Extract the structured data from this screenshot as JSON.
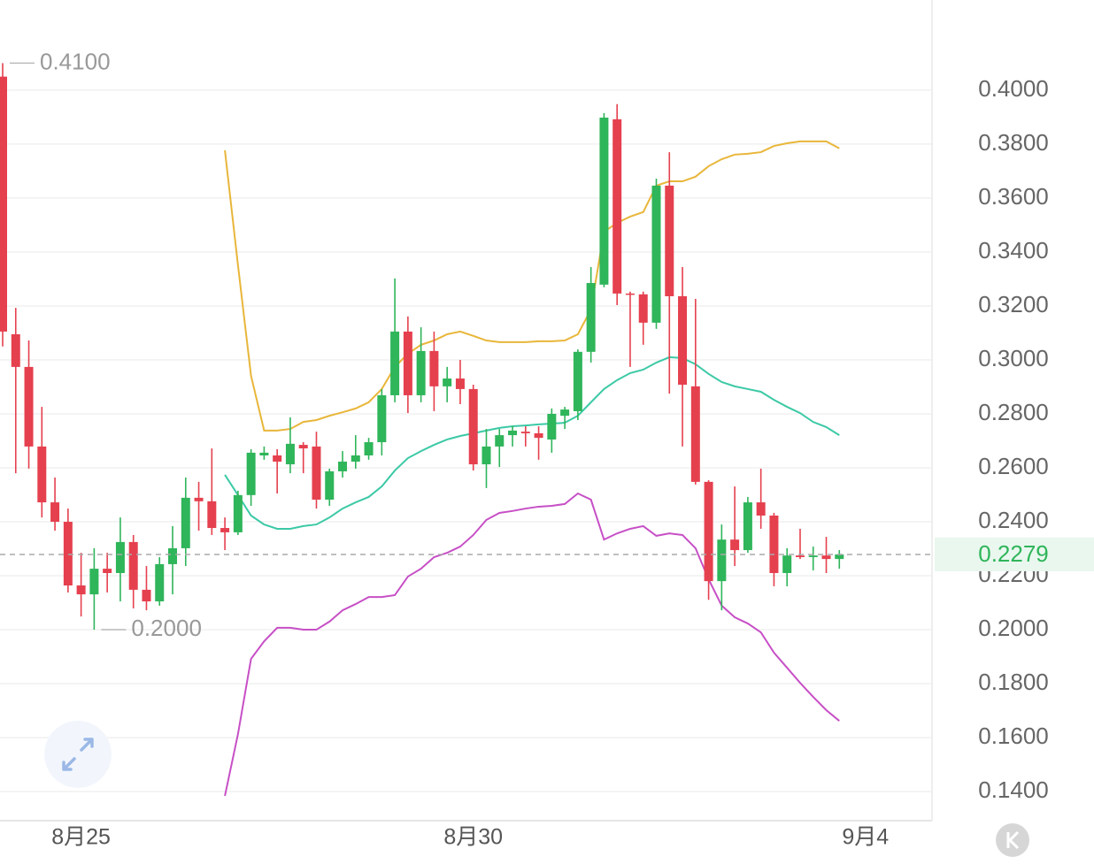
{
  "chart_data": {
    "type": "candlestick",
    "categories": [
      null,
      null,
      null,
      null,
      null,
      null,
      "8月25",
      null,
      null,
      null,
      null,
      null,
      null,
      null,
      null,
      null,
      null,
      null,
      null,
      null,
      null,
      null,
      null,
      null,
      null,
      null,
      null,
      null,
      null,
      null,
      null,
      null,
      null,
      null,
      null,
      null,
      "8月30",
      null,
      null,
      null,
      null,
      null,
      null,
      null,
      null,
      null,
      null,
      null,
      null,
      null,
      null,
      null,
      null,
      null,
      null,
      null,
      null,
      null,
      null,
      null,
      null,
      null,
      null,
      null,
      null,
      null,
      "9月4"
    ],
    "open": [
      0.405,
      0.3095,
      0.2974,
      0.2679,
      0.2472,
      0.24,
      0.2164,
      0.2131,
      0.2226,
      0.221,
      0.2325,
      0.2148,
      0.2105,
      0.2243,
      0.2302,
      0.2489,
      0.2476,
      0.2377,
      0.2361,
      0.2499,
      0.2646,
      0.2646,
      0.2613,
      0.2685,
      0.2679,
      0.2482,
      0.2587,
      0.2623,
      0.2646,
      0.2695,
      0.2869,
      0.3105,
      0.2869,
      0.3033,
      0.2902,
      0.2931,
      0.2892,
      0.2613,
      0.2679,
      0.2721,
      0.2734,
      0.2728,
      0.2705,
      0.2793,
      0.281,
      0.303,
      0.3279,
      0.3892,
      0.3246,
      0.3243,
      0.3138,
      0.3646,
      0.3236,
      0.2902,
      0.2548,
      0.218,
      0.2334,
      0.2295,
      0.2472,
      0.2423,
      0.221,
      0.2275,
      0.2269,
      0.2275,
      0.2262,
      null,
      null
    ],
    "high": [
      0.41,
      0.3193,
      0.3072,
      0.2826,
      0.2564,
      0.2449,
      0.2285,
      0.2302,
      0.2285,
      0.2416,
      0.2351,
      0.2236,
      0.2269,
      0.2384,
      0.2564,
      0.2548,
      0.2672,
      0.2416,
      0.2515,
      0.2669,
      0.2679,
      0.2669,
      0.2787,
      0.2695,
      0.2734,
      0.2597,
      0.2662,
      0.2721,
      0.2711,
      0.2892,
      0.3302,
      0.3161,
      0.3121,
      0.3105,
      0.2974,
      0.3,
      0.2908,
      0.2744,
      0.2744,
      0.2754,
      0.2754,
      0.2754,
      0.282,
      0.2826,
      0.3039,
      0.3344,
      0.3915,
      0.3948,
      0.3253,
      0.3253,
      0.3672,
      0.377,
      0.3344,
      0.3226,
      0.2554,
      0.239,
      0.2531,
      0.2492,
      0.2597,
      0.2433,
      0.2302,
      0.2374,
      0.2308,
      0.2344,
      0.2295,
      null,
      null
    ],
    "low": [
      0.305,
      0.258,
      0.2597,
      0.2416,
      0.2367,
      0.2138,
      0.2049,
      0.2,
      0.2138,
      0.2105,
      0.2079,
      0.2072,
      0.2089,
      0.2131,
      0.2236,
      0.2367,
      0.2351,
      0.2295,
      0.2351,
      0.2459,
      0.263,
      0.2505,
      0.258,
      0.258,
      0.2449,
      0.2459,
      0.2564,
      0.2597,
      0.263,
      0.2646,
      0.2843,
      0.2803,
      0.2843,
      0.281,
      0.2843,
      0.2836,
      0.259,
      0.2525,
      0.2603,
      0.2679,
      0.2679,
      0.263,
      0.2656,
      0.2744,
      0.2777,
      0.299,
      0.3269,
      0.3203,
      0.2974,
      0.3056,
      0.3115,
      0.2875,
      0.2679,
      0.2538,
      0.2111,
      0.2072,
      0.2236,
      0.2285,
      0.2374,
      0.2161,
      0.2161,
      0.2262,
      0.222,
      0.221,
      0.2226,
      null,
      null
    ],
    "close": [
      0.3105,
      0.2974,
      0.2679,
      0.2472,
      0.24,
      0.2164,
      0.2131,
      0.2226,
      0.221,
      0.2325,
      0.2148,
      0.2105,
      0.2243,
      0.2302,
      0.2489,
      0.2476,
      0.2377,
      0.2361,
      0.2499,
      0.2656,
      0.2656,
      0.2623,
      0.2689,
      0.2672,
      0.2482,
      0.2587,
      0.2623,
      0.2646,
      0.2695,
      0.2869,
      0.3105,
      0.2869,
      0.3033,
      0.2902,
      0.2931,
      0.2892,
      0.2613,
      0.2679,
      0.2721,
      0.2738,
      0.2728,
      0.2711,
      0.28,
      0.2816,
      0.303,
      0.3285,
      0.3898,
      0.3246,
      0.3243,
      0.3138,
      0.3646,
      0.3236,
      0.2908,
      0.2548,
      0.218,
      0.2334,
      0.2295,
      0.2472,
      0.2423,
      0.221,
      0.2275,
      0.2269,
      0.2275,
      0.2262,
      0.2279,
      null,
      null
    ],
    "up_color": "#2fb55a",
    "down_color": "#e5404e",
    "overlays": [
      {
        "color": "#e8b63a",
        "values": [
          null,
          null,
          null,
          null,
          null,
          null,
          null,
          null,
          null,
          null,
          null,
          null,
          null,
          null,
          null,
          null,
          null,
          0.3777,
          0.3351,
          0.2941,
          0.2738,
          0.2738,
          0.2744,
          0.277,
          0.2777,
          0.2793,
          0.2806,
          0.282,
          0.2843,
          0.2892,
          0.2974,
          0.3023,
          0.3056,
          0.3072,
          0.3095,
          0.3105,
          0.3089,
          0.3072,
          0.3066,
          0.3066,
          0.3066,
          0.3069,
          0.3069,
          0.3072,
          0.3095,
          0.3187,
          0.3475,
          0.3508,
          0.3531,
          0.3548,
          0.3646,
          0.3662,
          0.3662,
          0.3679,
          0.3718,
          0.3744,
          0.3761,
          0.3764,
          0.377,
          0.3793,
          0.3803,
          0.381,
          0.381,
          0.381,
          0.3784,
          null,
          null
        ]
      },
      {
        "color": "#3cc9a6",
        "values": [
          null,
          null,
          null,
          null,
          null,
          null,
          null,
          null,
          null,
          null,
          null,
          null,
          null,
          null,
          null,
          null,
          null,
          0.2574,
          0.2499,
          0.2423,
          0.239,
          0.2374,
          0.2374,
          0.2384,
          0.239,
          0.2416,
          0.2449,
          0.2472,
          0.2492,
          0.2531,
          0.259,
          0.2636,
          0.2662,
          0.2685,
          0.2705,
          0.2718,
          0.2728,
          0.2738,
          0.2748,
          0.2754,
          0.2757,
          0.2761,
          0.2764,
          0.2767,
          0.2793,
          0.2843,
          0.2892,
          0.2925,
          0.2951,
          0.2964,
          0.299,
          0.301,
          0.3007,
          0.2984,
          0.2948,
          0.2918,
          0.2902,
          0.2892,
          0.2882,
          0.2852,
          0.2826,
          0.2803,
          0.277,
          0.2751,
          0.2721,
          null,
          null
        ]
      },
      {
        "color": "#c74fc6",
        "values": [
          null,
          null,
          null,
          null,
          null,
          null,
          null,
          null,
          null,
          null,
          null,
          null,
          null,
          null,
          null,
          null,
          null,
          0.1384,
          0.1613,
          0.1892,
          0.1957,
          0.2007,
          0.2007,
          0.2,
          0.2,
          0.203,
          0.2072,
          0.2095,
          0.2121,
          0.2121,
          0.2128,
          0.2197,
          0.2226,
          0.2269,
          0.2285,
          0.2308,
          0.2351,
          0.2407,
          0.2433,
          0.244,
          0.2449,
          0.2456,
          0.2459,
          0.2466,
          0.2505,
          0.2482,
          0.2334,
          0.2357,
          0.2374,
          0.2384,
          0.2348,
          0.2357,
          0.2351,
          0.2302,
          0.2187,
          0.2089,
          0.2046,
          0.2023,
          0.199,
          0.1915,
          0.1859,
          0.1803,
          0.1751,
          0.1702,
          0.1662,
          null,
          null
        ]
      }
    ],
    "max_marker": {
      "value": 0.41,
      "label": "0.4100"
    },
    "min_marker": {
      "value": 0.2,
      "label": "0.2000"
    },
    "last_price": 0.2279,
    "last_price_color": "#2fb55a",
    "ylim": [
      0.1302,
      0.4334
    ],
    "yticks": [
      {
        "value": 0.14,
        "label": "0.1400"
      },
      {
        "value": 0.16,
        "label": "0.1600"
      },
      {
        "value": 0.18,
        "label": "0.1800"
      },
      {
        "value": 0.2,
        "label": "0.2000"
      },
      {
        "value": 0.22,
        "label": "0.2200"
      },
      {
        "value": 0.24,
        "label": "0.2400"
      },
      {
        "value": 0.26,
        "label": "0.2600"
      },
      {
        "value": 0.28,
        "label": "0.2800"
      },
      {
        "value": 0.3,
        "label": "0.3000"
      },
      {
        "value": 0.32,
        "label": "0.3200"
      },
      {
        "value": 0.34,
        "label": "0.3400"
      },
      {
        "value": 0.36,
        "label": "0.3600"
      },
      {
        "value": 0.38,
        "label": "0.3800"
      },
      {
        "value": 0.4,
        "label": "0.4000"
      }
    ],
    "grid": true
  }
}
